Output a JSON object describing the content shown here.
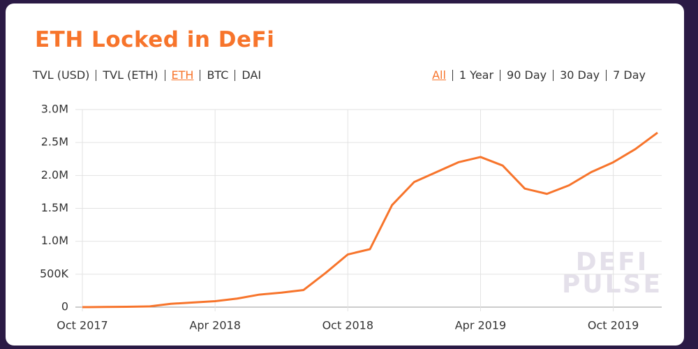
{
  "header": {
    "title": "ETH Locked in DeFi"
  },
  "tabs": {
    "items": [
      "TVL (USD)",
      "TVL (ETH)",
      "ETH",
      "BTC",
      "DAI"
    ],
    "active": 2
  },
  "ranges": {
    "items": [
      "All",
      "1 Year",
      "90 Day",
      "30 Day",
      "7 Day"
    ],
    "active": 0
  },
  "watermark": [
    "DEFI",
    "PULSE"
  ],
  "chart_data": {
    "type": "line",
    "x": [
      "2017-10",
      "2017-11",
      "2017-12",
      "2018-01",
      "2018-02",
      "2018-03",
      "2018-04",
      "2018-05",
      "2018-06",
      "2018-07",
      "2018-08",
      "2018-09",
      "2018-10",
      "2018-11",
      "2018-12",
      "2019-01",
      "2019-02",
      "2019-03",
      "2019-04",
      "2019-05",
      "2019-06",
      "2019-07",
      "2019-08",
      "2019-09",
      "2019-10",
      "2019-11",
      "2019-12"
    ],
    "series": [
      {
        "name": "ETH",
        "color": "#f7742b",
        "values": [
          0,
          2000,
          5000,
          10000,
          50000,
          70000,
          90000,
          130000,
          190000,
          220000,
          260000,
          520000,
          800000,
          880000,
          1550000,
          1900000,
          2050000,
          2200000,
          2280000,
          2150000,
          1800000,
          1720000,
          1850000,
          2050000,
          2200000,
          2400000,
          2650000
        ]
      }
    ],
    "xlim": [
      "2017-10",
      "2019-12"
    ],
    "xticks": [
      {
        "value": "2017-10",
        "label": "Oct 2017"
      },
      {
        "value": "2018-04",
        "label": "Apr 2018"
      },
      {
        "value": "2018-10",
        "label": "Oct 2018"
      },
      {
        "value": "2019-04",
        "label": "Apr 2019"
      },
      {
        "value": "2019-10",
        "label": "Oct 2019"
      }
    ],
    "ylim": [
      0,
      3000000
    ],
    "yticks": [
      0,
      {
        "value": 500000,
        "label": "500K"
      },
      {
        "value": 1000000,
        "label": "1.0M"
      },
      {
        "value": 1500000,
        "label": "1.5M"
      },
      {
        "value": 2000000,
        "label": "2.0M"
      },
      {
        "value": 2500000,
        "label": "2.5M"
      },
      {
        "value": 3000000,
        "label": "3.0M"
      }
    ],
    "grid": true
  }
}
